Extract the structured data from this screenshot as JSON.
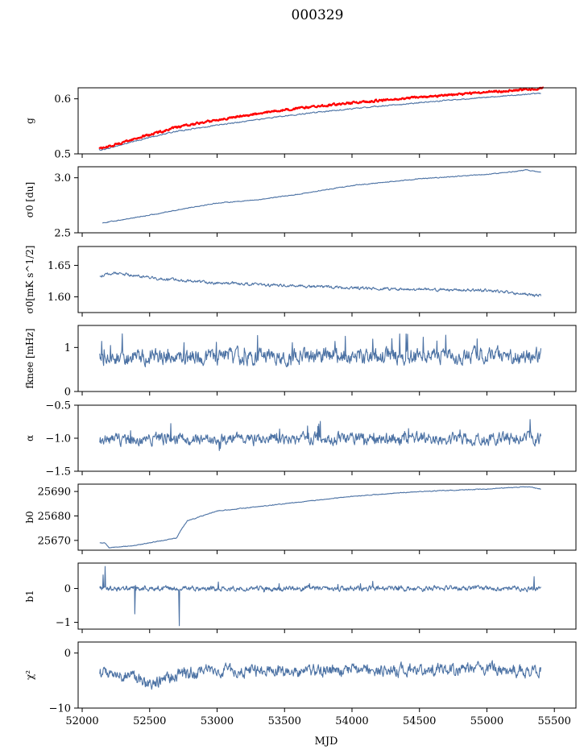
{
  "title": "000329",
  "xlabel": "MJD",
  "colors": {
    "series": "#4c72a4",
    "highlight": "#ff0000"
  },
  "chart_data": [
    {
      "type": "line",
      "ylabel": "g",
      "xlim": [
        51970,
        55660
      ],
      "ylim": [
        0.5,
        0.62
      ],
      "yticks": [
        0.5,
        0.6
      ],
      "ytick_labels": [
        "0.5",
        "0.6"
      ],
      "series": [
        {
          "name": "g",
          "color": "#4c72a4",
          "noise": 0.0008,
          "x": [
            52125,
            52160,
            52300,
            52500,
            52700,
            53000,
            53500,
            54000,
            54500,
            55000,
            55400
          ],
          "y": [
            0.507,
            0.508,
            0.517,
            0.53,
            0.541,
            0.552,
            0.569,
            0.582,
            0.593,
            0.603,
            0.61
          ]
        },
        {
          "name": "g (red)",
          "color": "#ff0000",
          "noise": 0.0015,
          "width": 2.2,
          "x": [
            52125,
            52160,
            52300,
            52500,
            52700,
            53000,
            53500,
            54000,
            54500,
            55000,
            55420
          ],
          "y": [
            0.511,
            0.511,
            0.521,
            0.535,
            0.548,
            0.562,
            0.58,
            0.593,
            0.603,
            0.612,
            0.619
          ]
        }
      ]
    },
    {
      "type": "line",
      "ylabel": "σ0 [du]",
      "xlim": [
        51970,
        55660
      ],
      "ylim": [
        2.5,
        3.1
      ],
      "yticks": [
        2.5,
        3.0
      ],
      "ytick_labels": [
        "2.5",
        "3.0"
      ],
      "series": [
        {
          "name": "sigma0_du",
          "color": "#4c72a4",
          "noise": 0.003,
          "x": [
            52150,
            52300,
            52500,
            52800,
            53000,
            53300,
            53600,
            54000,
            54500,
            55000,
            55300,
            55400
          ],
          "y": [
            2.59,
            2.62,
            2.66,
            2.73,
            2.77,
            2.8,
            2.85,
            2.93,
            2.99,
            3.03,
            3.07,
            3.05
          ]
        }
      ]
    },
    {
      "type": "line",
      "ylabel": "σ0[mK s^1/2]",
      "xlim": [
        51970,
        55660
      ],
      "ylim": [
        1.575,
        1.68
      ],
      "yticks": [
        1.6,
        1.65
      ],
      "ytick_labels": [
        "1.60",
        "1.65"
      ],
      "series": [
        {
          "name": "sigma0_mK",
          "color": "#4c72a4",
          "noise": 0.0018,
          "x": [
            52130,
            52250,
            52500,
            53000,
            53500,
            54000,
            54500,
            55000,
            55400
          ],
          "y": [
            1.633,
            1.638,
            1.63,
            1.622,
            1.618,
            1.614,
            1.612,
            1.61,
            1.602
          ]
        }
      ]
    },
    {
      "type": "line",
      "ylabel": "fknee [mHz]",
      "xlim": [
        51970,
        55660
      ],
      "ylim": [
        0,
        1.5
      ],
      "yticks": [
        0,
        1
      ],
      "ytick_labels": [
        "0",
        "1"
      ],
      "series": [
        {
          "name": "fknee",
          "color": "#4c72a4",
          "noise": 0.14,
          "spikes": 0.05,
          "x": [
            52130,
            55400
          ],
          "y": [
            0.78,
            0.82
          ]
        }
      ]
    },
    {
      "type": "line",
      "ylabel": "α",
      "xlim": [
        51970,
        55660
      ],
      "ylim": [
        -1.5,
        -0.5
      ],
      "yticks": [
        -1.5,
        -1.0,
        -0.5
      ],
      "ytick_labels": [
        "−1.5",
        "−1.0",
        "−0.5"
      ],
      "series": [
        {
          "name": "alpha",
          "color": "#4c72a4",
          "noise": 0.07,
          "spikes": 0.04,
          "x": [
            52130,
            55400
          ],
          "y": [
            -1.02,
            -1.0
          ]
        }
      ]
    },
    {
      "type": "line",
      "ylabel": "b0",
      "xlim": [
        51970,
        55660
      ],
      "ylim": [
        25666,
        25693
      ],
      "yticks": [
        25670,
        25680,
        25690
      ],
      "ytick_labels": [
        "25670",
        "25680",
        "25690"
      ],
      "series": [
        {
          "name": "b0",
          "color": "#4c72a4",
          "noise": 0.12,
          "x": [
            52130,
            52170,
            52200,
            52400,
            52600,
            52700,
            52730,
            52780,
            53000,
            53500,
            54000,
            54500,
            55000,
            55300,
            55400
          ],
          "y": [
            25669,
            25669,
            25667,
            25668,
            25670,
            25671,
            25674,
            25678,
            25682,
            25685,
            25688,
            25690,
            25691,
            25692,
            25691
          ]
        }
      ]
    },
    {
      "type": "line",
      "ylabel": "b1",
      "xlim": [
        51970,
        55660
      ],
      "ylim": [
        -1.2,
        0.75
      ],
      "yticks": [
        -1,
        0
      ],
      "ytick_labels": [
        "−1",
        "0"
      ],
      "series": [
        {
          "name": "b1",
          "color": "#4c72a4",
          "noise": 0.06,
          "spikes": 0.02,
          "x": [
            52130,
            55400
          ],
          "y": [
            0.0,
            0.0
          ],
          "extremes": [
            [
              52170,
              0.65
            ],
            [
              52155,
              0.4
            ],
            [
              52390,
              -0.75
            ],
            [
              52720,
              -1.1
            ],
            [
              55350,
              0.35
            ]
          ]
        }
      ]
    },
    {
      "type": "line",
      "ylabel": "χ²",
      "xlim": [
        51970,
        55660
      ],
      "ylim": [
        -10,
        2
      ],
      "yticks": [
        -10,
        0
      ],
      "ytick_labels": [
        "−10",
        "0"
      ],
      "series": [
        {
          "name": "chi2",
          "color": "#4c72a4",
          "noise": 0.9,
          "x": [
            52130,
            52300,
            52500,
            52700,
            53000,
            53500,
            54000,
            54500,
            55000,
            55400
          ],
          "y": [
            -3.5,
            -4.0,
            -5.5,
            -4.0,
            -3.0,
            -3.5,
            -3.0,
            -3.2,
            -2.8,
            -3.5
          ]
        }
      ]
    }
  ],
  "xaxis": {
    "ticks": [
      52000,
      52500,
      53000,
      53500,
      54000,
      54500,
      55000,
      55500
    ],
    "tick_labels": [
      "52000",
      "52500",
      "53000",
      "53500",
      "54000",
      "54500",
      "55000",
      "55500"
    ]
  }
}
